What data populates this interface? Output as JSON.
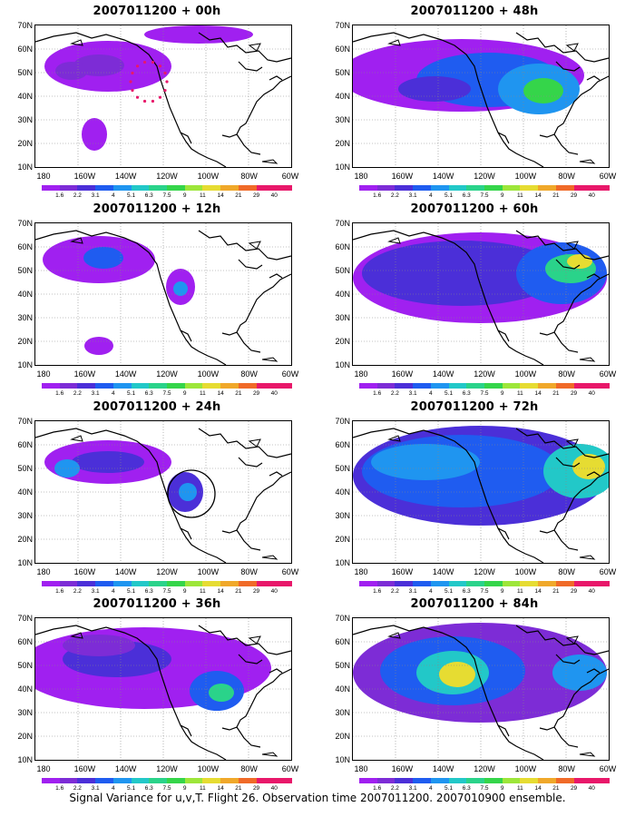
{
  "caption": "Signal Variance for u,v,T. Flight 26. Observation time 2007011200. 2007010900 ensemble.",
  "axes": {
    "y_labels": [
      "70N",
      "60N",
      "50N",
      "40N",
      "30N",
      "20N",
      "10N"
    ],
    "x_labels": [
      "180",
      "160W",
      "140W",
      "120W",
      "100W",
      "80W",
      "60W"
    ]
  },
  "colorbar": {
    "labels": [
      "1.6",
      "2.2",
      "3.1",
      "4",
      "5.1",
      "6.3",
      "7.5",
      "9",
      "11",
      "14",
      "21",
      "29",
      "40"
    ],
    "colors": [
      "#a020f0",
      "#7d2cd6",
      "#4b2fd8",
      "#1f5cf0",
      "#1f95f0",
      "#22c8c8",
      "#2ad38a",
      "#35d54a",
      "#9de63a",
      "#e6dc32",
      "#f0a82a",
      "#f06a28",
      "#e8186a"
    ]
  },
  "panels": [
    {
      "title": "2007011200 + 00h",
      "col": 0,
      "row": 0
    },
    {
      "title": "2007011200 + 48h",
      "col": 1,
      "row": 0
    },
    {
      "title": "2007011200 + 12h",
      "col": 0,
      "row": 1
    },
    {
      "title": "2007011200 + 60h",
      "col": 1,
      "row": 1
    },
    {
      "title": "2007011200 + 24h",
      "col": 0,
      "row": 2
    },
    {
      "title": "2007011200 + 72h",
      "col": 1,
      "row": 2
    },
    {
      "title": "2007011200 + 36h",
      "col": 0,
      "row": 3
    },
    {
      "title": "2007011200 + 84h",
      "col": 1,
      "row": 3
    }
  ]
}
